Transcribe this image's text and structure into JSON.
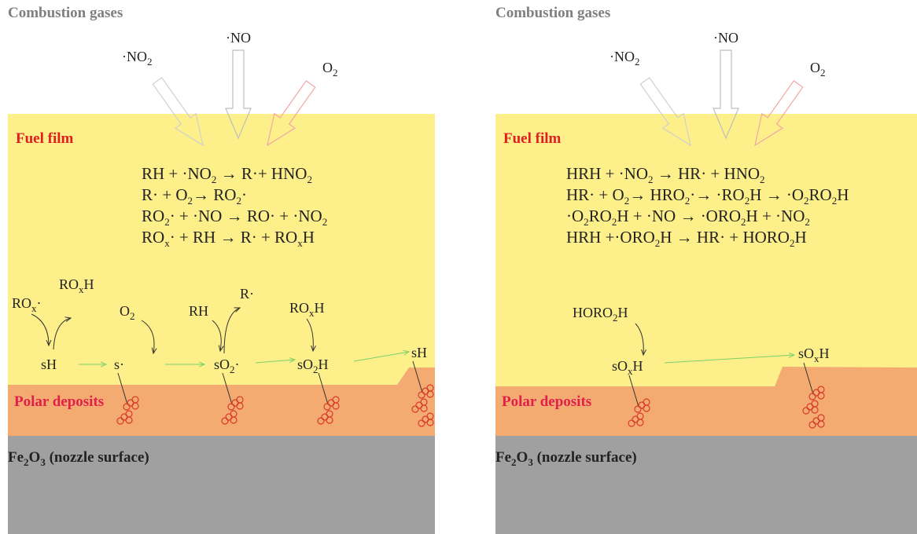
{
  "left": {
    "header": "Combustion gases",
    "gases": [
      [
        "·NO",
        "2"
      ],
      [
        "·NO"
      ],
      [
        "O",
        "2"
      ]
    ],
    "fuel_label": "Fuel film",
    "polar_label": "Polar deposits",
    "surface_label": [
      "Fe",
      "2",
      "O",
      "3",
      " (nozzle surface)"
    ],
    "equations": [
      [
        "RH + ·NO",
        "2",
        " → R·+ HNO",
        "2"
      ],
      [
        "R· + O",
        "2",
        "→ RO",
        "2",
        "·"
      ],
      [
        "RO",
        "2",
        "· + ·NO → RO· + ·NO",
        "2"
      ],
      [
        "RO",
        "x",
        "· + RH → R· + RO",
        "x",
        "H"
      ]
    ],
    "species": [
      [
        "RO",
        "x",
        "·"
      ],
      [
        "RO",
        "x",
        "H"
      ],
      [
        "O",
        "2"
      ],
      [
        "RH"
      ],
      [
        "R·"
      ],
      [
        "RO",
        "x",
        "H"
      ],
      [
        "sH"
      ],
      [
        "s·"
      ],
      [
        "sO",
        "2",
        "·"
      ],
      [
        "sO",
        "2",
        "H"
      ],
      [
        "sH"
      ]
    ]
  },
  "right": {
    "header": "Combustion gases",
    "gases": [
      [
        "·NO",
        "2"
      ],
      [
        "·NO"
      ],
      [
        "O",
        "2"
      ]
    ],
    "fuel_label": "Fuel film",
    "polar_label": "Polar deposits",
    "surface_label": [
      "Fe",
      "2",
      "O",
      "3",
      " (nozzle surface)"
    ],
    "equations": [
      [
        "HRH + ·NO",
        "2",
        " → HR· + HNO",
        "2"
      ],
      [
        "HR· + O",
        "2",
        "→ HRO",
        "2",
        "·→ ·RO",
        "2",
        "H → ·O",
        "2",
        "RO",
        "2",
        "H"
      ],
      [
        "·O",
        "2",
        "RO",
        "2",
        "H + ·NO → ·ORO",
        "2",
        "H + ·NO",
        "2"
      ],
      [
        "HRH +·ORO",
        "2",
        "H → HR· + HORO",
        "2",
        "H"
      ]
    ],
    "species": [
      [
        "HORO",
        "2",
        "H"
      ],
      [
        "sO",
        "x",
        "H"
      ],
      [
        "sO",
        "x",
        "H"
      ]
    ]
  }
}
